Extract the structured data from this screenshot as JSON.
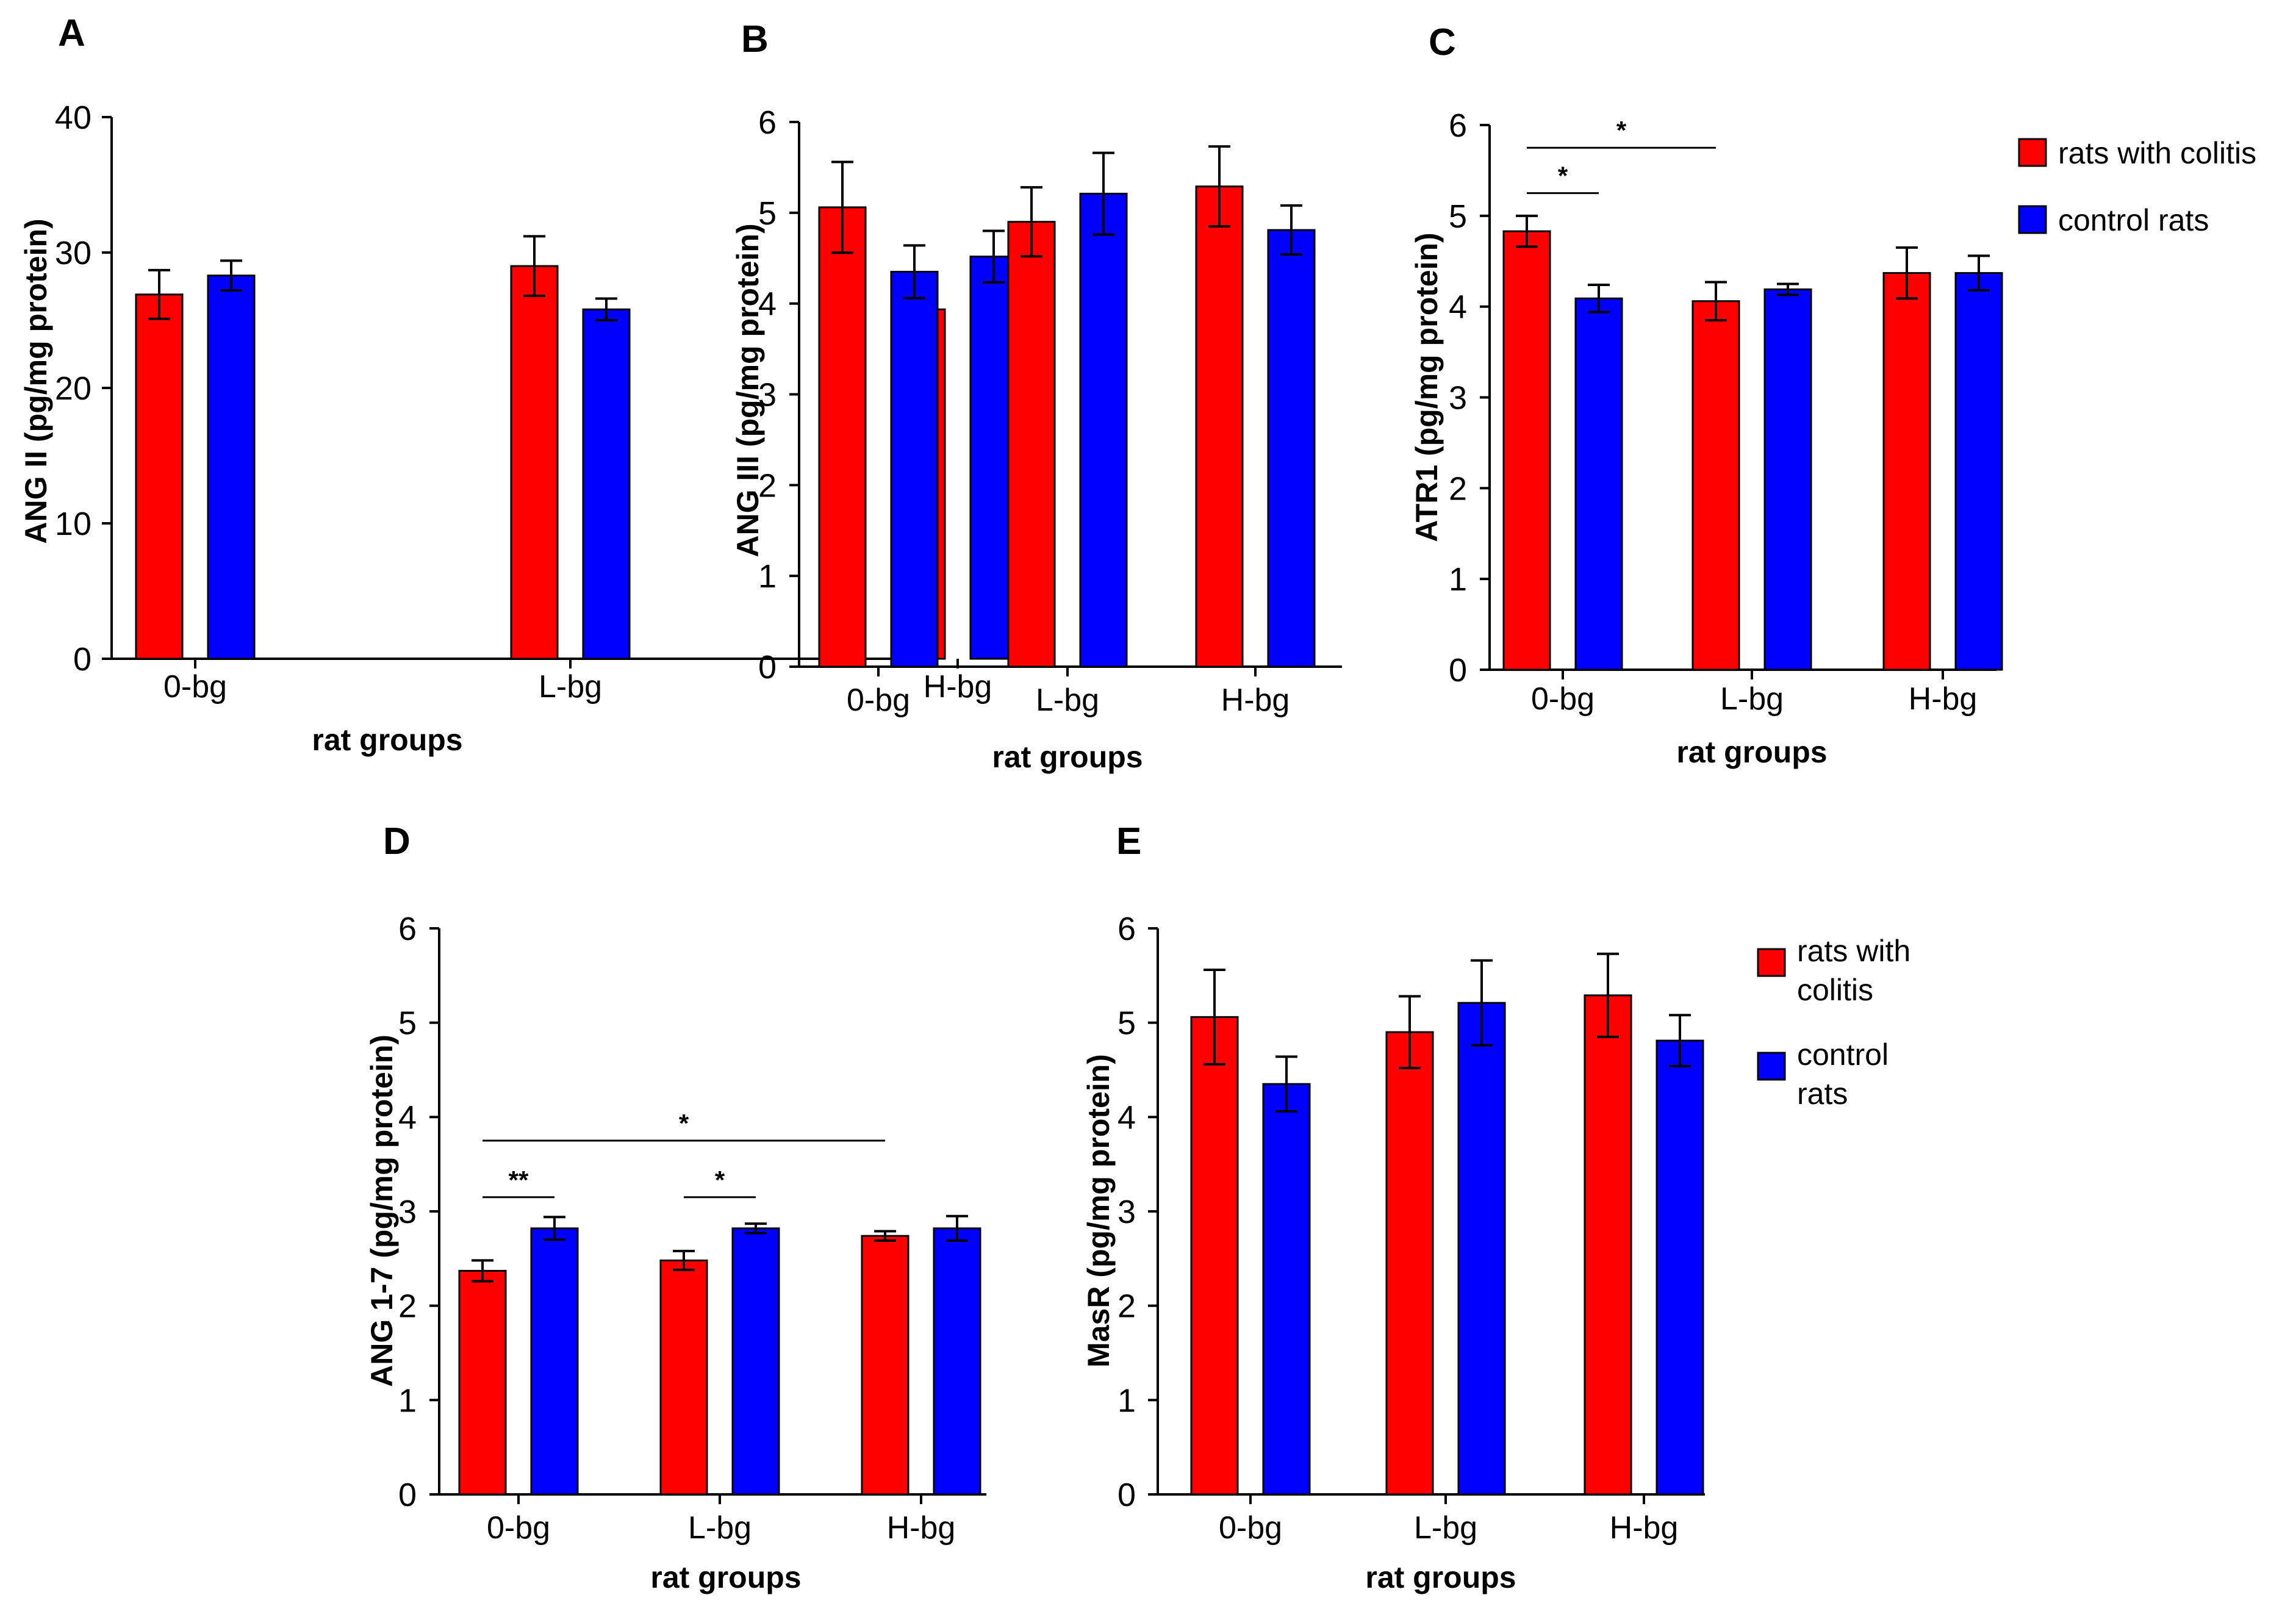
{
  "chart_data": [
    {
      "panel": "A",
      "type": "bar",
      "categories": [
        "0-bg",
        "L-bg",
        "H-bg"
      ],
      "series": [
        {
          "name": "rats with colitis",
          "values": [
            26.9,
            29.0,
            25.8
          ],
          "errors": [
            1.8,
            2.2,
            1.0
          ]
        },
        {
          "name": "control rats",
          "values": [
            28.3,
            25.8,
            29.7
          ],
          "errors": [
            1.1,
            0.8,
            1.9
          ]
        }
      ],
      "xlabel": "rat groups",
      "ylabel": "ANG II (pg/mg protein)",
      "ylim": [
        0,
        40
      ],
      "yticks": [
        0,
        10,
        20,
        30,
        40
      ],
      "significance": [],
      "legend": "none",
      "grid": false
    },
    {
      "panel": "B",
      "type": "bar",
      "categories": [
        "0-bg",
        "L-bg",
        "H-bg"
      ],
      "series": [
        {
          "name": "rats with colitis",
          "values": [
            5.06,
            4.9,
            5.29
          ],
          "errors": [
            0.5,
            0.38,
            0.44
          ]
        },
        {
          "name": "control rats",
          "values": [
            4.35,
            5.21,
            4.81
          ],
          "errors": [
            0.29,
            0.45,
            0.27
          ]
        }
      ],
      "xlabel": "rat groups",
      "ylabel": "ANG III (pg/mg protein)",
      "ylim": [
        0,
        6
      ],
      "yticks": [
        0,
        1,
        2,
        3,
        4,
        5,
        6
      ],
      "significance": [],
      "legend": "none",
      "grid": false
    },
    {
      "panel": "C",
      "type": "bar",
      "categories": [
        "0-bg",
        "L-bg",
        "H-bg"
      ],
      "series": [
        {
          "name": "rats with colitis",
          "values": [
            4.83,
            4.06,
            4.37
          ],
          "errors": [
            0.17,
            0.21,
            0.28
          ]
        },
        {
          "name": "control rats",
          "values": [
            4.09,
            4.19,
            4.37
          ],
          "errors": [
            0.15,
            0.06,
            0.19
          ]
        }
      ],
      "xlabel": "rat groups",
      "ylabel": "ATR1 (pg/mg protein)",
      "ylim": [
        0,
        6
      ],
      "yticks": [
        0,
        1,
        2,
        3,
        4,
        5,
        6
      ],
      "significance": [
        {
          "label": "*",
          "from": [
            0,
            0
          ],
          "to": [
            1,
            0
          ],
          "y": 5.75
        },
        {
          "label": "*",
          "from": [
            0,
            0
          ],
          "to": [
            0,
            1
          ],
          "y": 5.25
        }
      ],
      "legend": "right",
      "grid": false
    },
    {
      "panel": "D",
      "type": "bar",
      "categories": [
        "0-bg",
        "L-bg",
        "H-bg"
      ],
      "series": [
        {
          "name": "rats with colitis",
          "values": [
            2.37,
            2.48,
            2.74
          ],
          "errors": [
            0.11,
            0.1,
            0.05
          ]
        },
        {
          "name": "control rats",
          "values": [
            2.82,
            2.82,
            2.82
          ],
          "errors": [
            0.12,
            0.05,
            0.13
          ]
        }
      ],
      "xlabel": "rat groups",
      "ylabel": "ANG 1-7 (pg/mg protein)",
      "ylim": [
        0,
        6
      ],
      "yticks": [
        0,
        1,
        2,
        3,
        4,
        5,
        6
      ],
      "significance": [
        {
          "label": "*",
          "from": [
            0,
            0
          ],
          "to": [
            2,
            0
          ],
          "y": 3.75
        },
        {
          "label": "**",
          "from": [
            0,
            0
          ],
          "to": [
            0,
            1
          ],
          "y": 3.15
        },
        {
          "label": "*",
          "from": [
            1,
            0
          ],
          "to": [
            1,
            1
          ],
          "y": 3.15
        }
      ],
      "legend": "none",
      "grid": false
    },
    {
      "panel": "E",
      "type": "bar",
      "categories": [
        "0-bg",
        "L-bg",
        "H-bg"
      ],
      "series": [
        {
          "name": "rats with colitis",
          "values": [
            5.06,
            4.9,
            5.29
          ],
          "errors": [
            0.5,
            0.38,
            0.44
          ]
        },
        {
          "name": "control rats",
          "values": [
            4.35,
            5.21,
            4.81
          ],
          "errors": [
            0.29,
            0.45,
            0.27
          ]
        }
      ],
      "xlabel": "rat groups",
      "ylabel": "MasR (pg/mg protein)",
      "ylim": [
        0,
        6
      ],
      "yticks": [
        0,
        1,
        2,
        3,
        4,
        5,
        6
      ],
      "significance": [],
      "legend": "right",
      "grid": false
    }
  ],
  "legends": [
    {
      "panel": "C",
      "entries": [
        {
          "label_lines": [
            "rats with colitis"
          ]
        },
        {
          "label_lines": [
            "control rats"
          ]
        }
      ]
    },
    {
      "panel": "E",
      "entries": [
        {
          "label_lines": [
            "rats with",
            "colitis"
          ]
        },
        {
          "label_lines": [
            "control",
            "rats"
          ]
        }
      ]
    }
  ],
  "colors": {
    "colitis": "#ff0000",
    "control": "#0000ff",
    "axis": "#000000"
  }
}
